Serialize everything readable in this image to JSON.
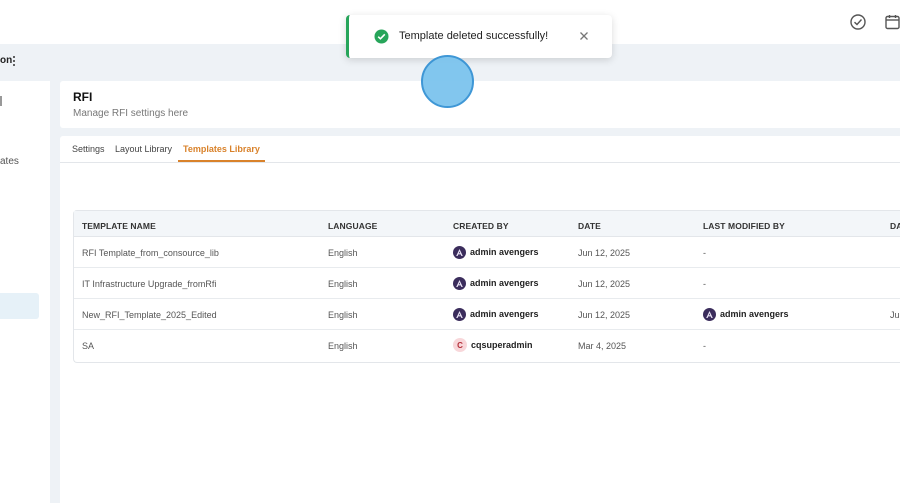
{
  "header": {
    "section_label": "on"
  },
  "sidebar": {
    "partial_item_label": "ates"
  },
  "rfi": {
    "title": "RFI",
    "subtitle": "Manage RFI settings here"
  },
  "tabs": [
    {
      "label": "Settings"
    },
    {
      "label": "Layout Library"
    },
    {
      "label": "Templates Library",
      "active": true
    }
  ],
  "table": {
    "columns": [
      "TEMPLATE NAME",
      "LANGUAGE",
      "CREATED BY",
      "DATE",
      "LAST MODIFIED BY",
      "DA"
    ],
    "rows": [
      {
        "name": "RFI Template_from_consource_lib",
        "language": "English",
        "created_by": "admin avengers",
        "date": "Jun 12, 2025",
        "modified_by": "-",
        "date2": ""
      },
      {
        "name": "IT Infrastructure Upgrade_fromRfi",
        "language": "English",
        "created_by": "admin avengers",
        "date": "Jun 12, 2025",
        "modified_by": "-",
        "date2": ""
      },
      {
        "name": "New_RFI_Template_2025_Edited",
        "language": "English",
        "created_by": "admin avengers",
        "date": "Jun 12, 2025",
        "modified_by": "admin avengers",
        "date2": "Ju"
      },
      {
        "name": "SA",
        "language": "English",
        "created_by": "cqsuperadmin",
        "date": "Mar 4, 2025",
        "modified_by": "-",
        "date2": ""
      }
    ],
    "avatar_letter_c": "C"
  },
  "toast": {
    "message": "Template deleted successfully!",
    "status_color": "#27a55a"
  },
  "colors": {
    "accent": "#d9822b",
    "background": "#eef2f6"
  }
}
